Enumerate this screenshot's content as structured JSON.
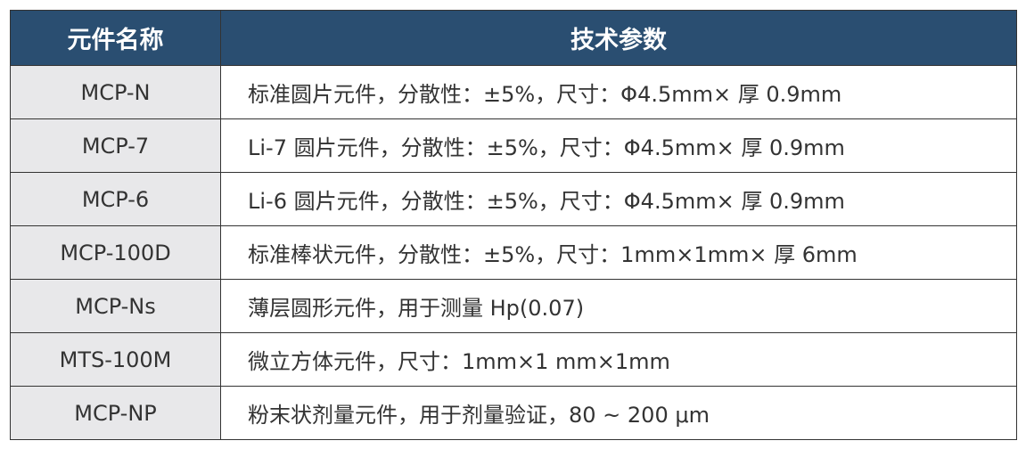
{
  "header": {
    "name": "元件名称",
    "spec": "技术参数"
  },
  "rows": [
    {
      "name": "MCP-N",
      "spec": "标准圆片元件，分散性：±5%，尺寸：Φ4.5mm× 厚 0.9mm"
    },
    {
      "name": "MCP-7",
      "spec": "Li-7 圆片元件，分散性：±5%，尺寸：Φ4.5mm× 厚 0.9mm"
    },
    {
      "name": "MCP-6",
      "spec": "Li-6 圆片元件，分散性：±5%，尺寸：Φ4.5mm× 厚 0.9mm"
    },
    {
      "name": "MCP-100D",
      "spec": "标准棒状元件，分散性：±5%，尺寸：1mm×1mm× 厚 6mm"
    },
    {
      "name": "MCP-Ns",
      "spec": "薄层圆形元件，用于测量 Hp(0.07)"
    },
    {
      "name": "MTS-100M",
      "spec": "微立方体元件，尺寸：1mm×1 mm×1mm"
    },
    {
      "name": "MCP-NP",
      "spec": "粉末状剂量元件，用于剂量验证，80 ~ 200 μm"
    }
  ],
  "colors": {
    "header_bg": "#2a4e71",
    "name_col_bg": "#e8e8ea"
  }
}
